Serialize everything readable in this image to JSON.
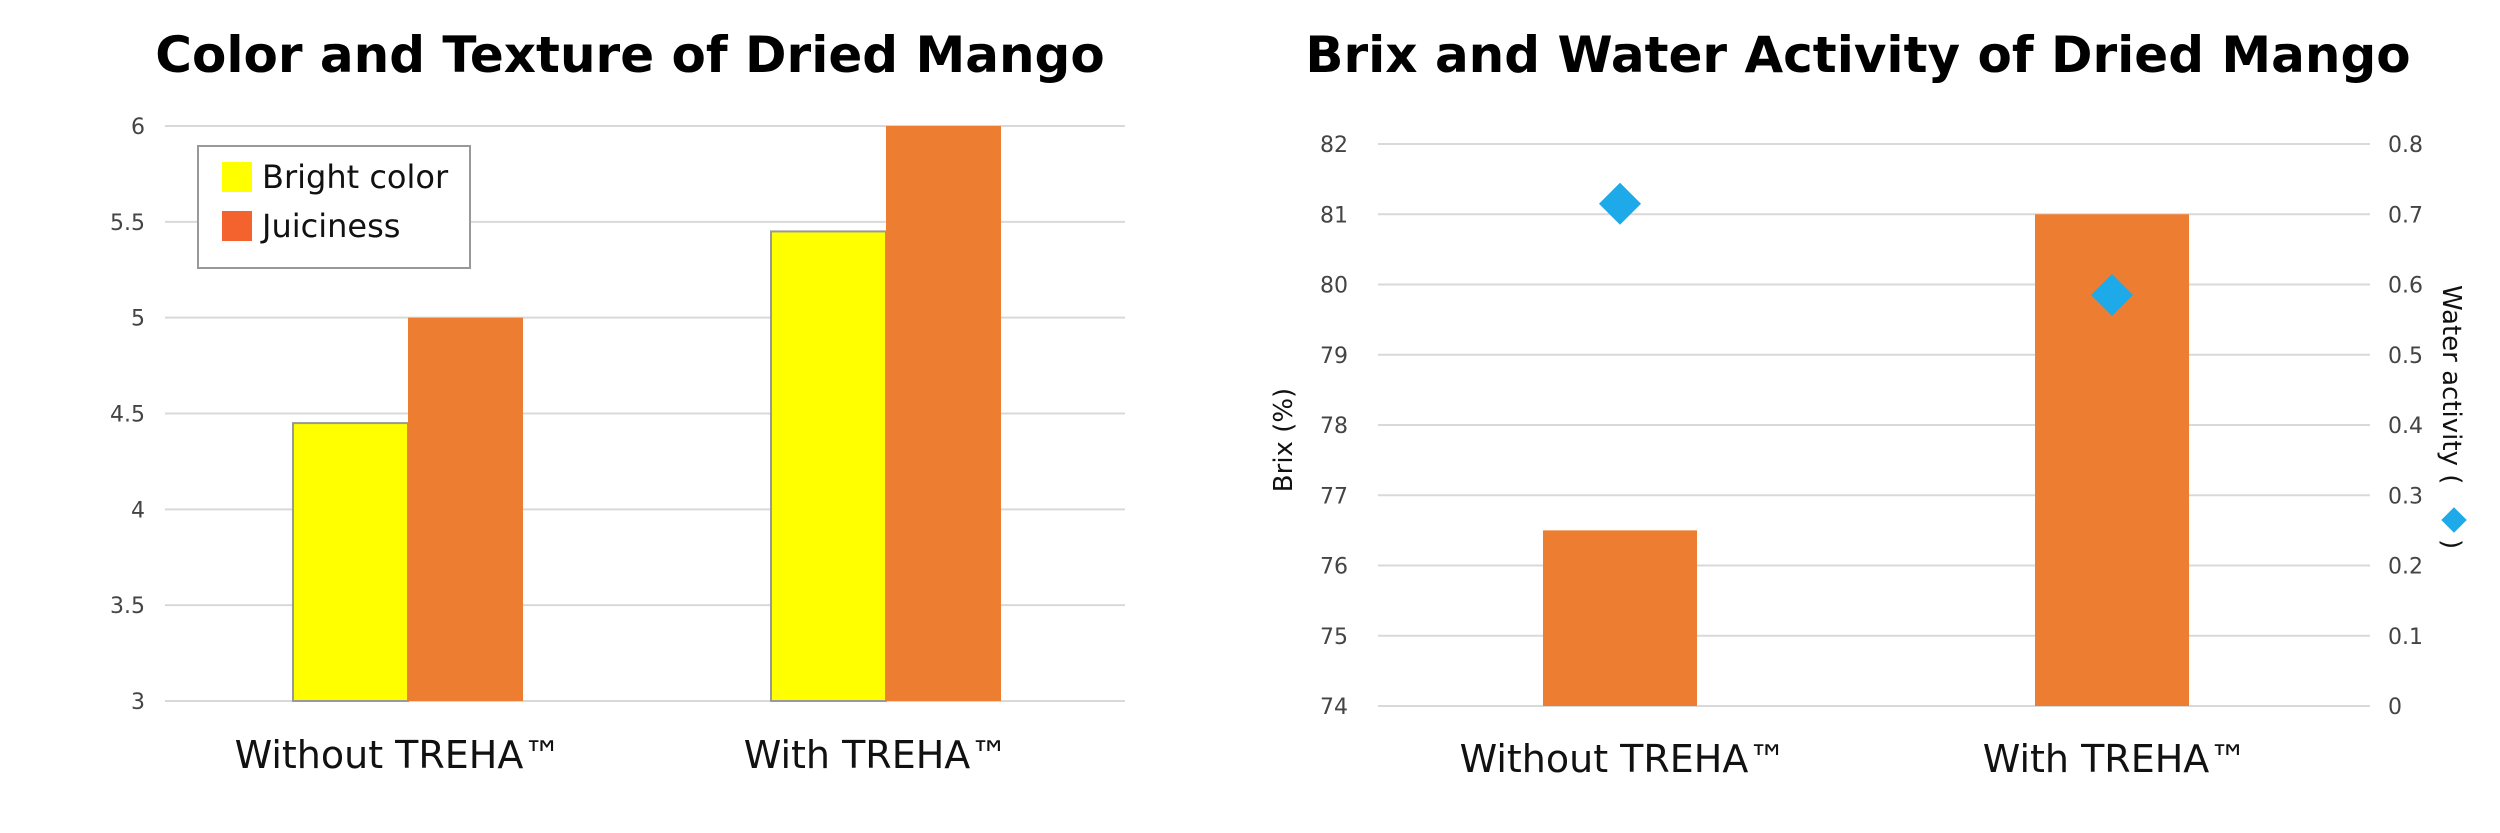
{
  "chart_data": [
    {
      "type": "bar",
      "title": "Color and Texture of Dried Mango",
      "categories": [
        "Without TREHA™",
        "With TREHA™"
      ],
      "series": [
        {
          "name": "Bright color",
          "values": [
            4.45,
            5.45
          ],
          "color": "#FFFF00"
        },
        {
          "name": "Juiciness",
          "values": [
            5.0,
            6.0
          ],
          "color": "#ED7D31"
        }
      ],
      "ylim": [
        3,
        6
      ],
      "yticks": [
        "3",
        "3.5",
        "4",
        "4.5",
        "5",
        "5.5",
        "6"
      ],
      "xlabel": "",
      "ylabel": "",
      "legend": {
        "placement": "top-left",
        "entries": [
          "Bright color",
          "Juiciness"
        ],
        "swatch_colors": [
          "#FFFF00",
          "#F4622E"
        ]
      },
      "grid": true
    },
    {
      "type": "bar",
      "title": "Brix and Water Activity of Dried Mango",
      "categories": [
        "Without TREHA™",
        "With TREHA™"
      ],
      "series": [
        {
          "name": "Brix (%)",
          "kind": "bar",
          "axis": "left",
          "values": [
            76.5,
            81.0
          ],
          "color": "#ED7D31"
        },
        {
          "name": "Water activity",
          "kind": "scatter",
          "marker": "diamond",
          "axis": "right",
          "values": [
            0.715,
            0.585
          ],
          "color": "#1EAAE8"
        }
      ],
      "ylim": [
        74,
        82
      ],
      "yticks": [
        "74",
        "75",
        "76",
        "77",
        "78",
        "79",
        "80",
        "81",
        "82"
      ],
      "y2lim": [
        0,
        0.8
      ],
      "y2ticks": [
        "0",
        "0.1",
        "0.2",
        "0.3",
        "0.4",
        "0.5",
        "0.6",
        "0.7",
        "0.8"
      ],
      "ylabel": "Brix (%)",
      "y2label": "Water activity (",
      "y2label_end": ")",
      "grid": true
    }
  ]
}
